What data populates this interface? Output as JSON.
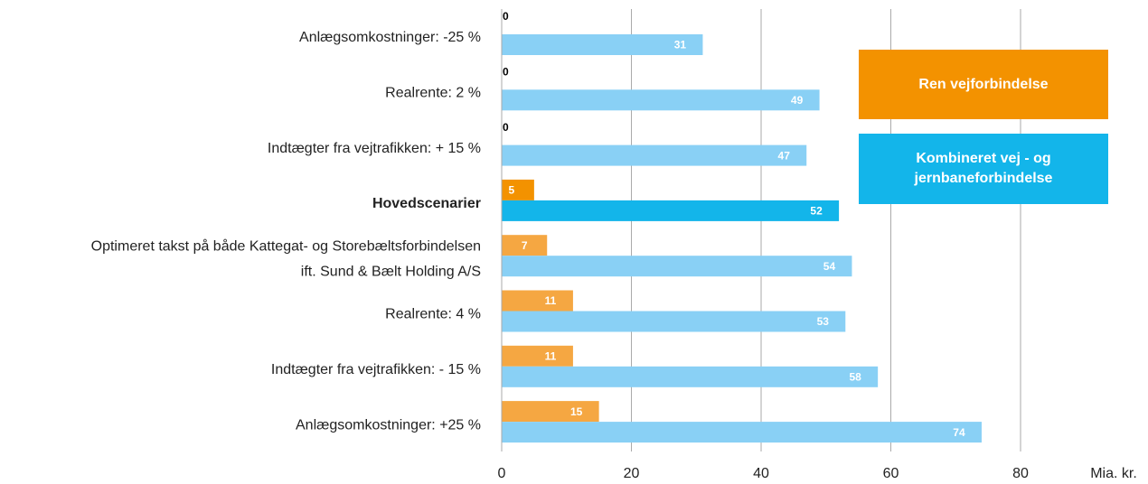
{
  "chart_data": {
    "type": "hbar",
    "categories": [
      [
        "Anlægsomkostninger: -25 %"
      ],
      [
        "Realrente: 2 %"
      ],
      [
        "Indtægter fra vejtrafikken: + 15 %"
      ],
      [
        "Hovedscenarier"
      ],
      [
        "Optimeret takst på både Kattegat- og Storebæltsforbindelsen",
        "ift. Sund & Bælt Holding A/S"
      ],
      [
        "Realrente: 4 %"
      ],
      [
        "Indtægter fra vejtrafikken: - 15 %"
      ],
      [
        "Anlægsomkostninger: +25 %"
      ]
    ],
    "emphasis": [
      false,
      false,
      false,
      true,
      false,
      false,
      false,
      false
    ],
    "series": [
      {
        "name": "Ren vejforbindelse",
        "color": "#f39200",
        "colors": [
          "#f5a742",
          "#f5a742",
          "#f5a742",
          "#f39200",
          "#f5a742",
          "#f5a742",
          "#f5a742",
          "#f5a742"
        ],
        "values": [
          0,
          0,
          0,
          5,
          7,
          11,
          11,
          15
        ]
      },
      {
        "name": "Kombineret vej - og jernbaneforbindelse",
        "color": "#13b5ea",
        "colors": [
          "#89d0f5",
          "#89d0f5",
          "#89d0f5",
          "#13b5ea",
          "#89d0f5",
          "#89d0f5",
          "#89d0f5",
          "#89d0f5"
        ],
        "values": [
          31,
          49,
          47,
          52,
          54,
          53,
          58,
          74
        ]
      }
    ],
    "xlabel": "Mia. kr.",
    "xlim": [
      0,
      80
    ],
    "xticks": [
      0,
      20,
      40,
      60,
      80
    ],
    "grid": true
  }
}
